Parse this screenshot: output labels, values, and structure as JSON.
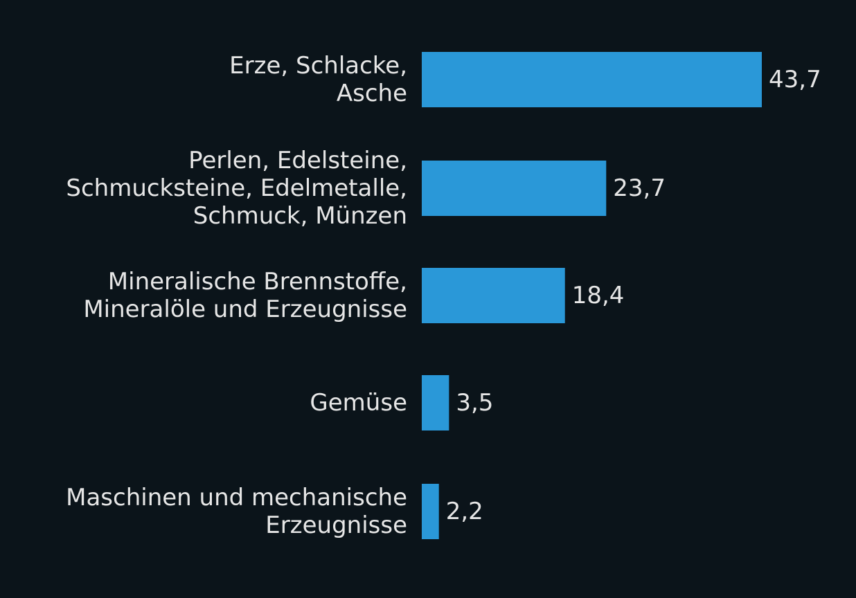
{
  "chart_data": {
    "type": "bar",
    "orientation": "horizontal",
    "title": "",
    "xlabel": "",
    "ylabel": "",
    "grid": false,
    "legend": "none",
    "xlim": [
      0,
      43.7
    ],
    "categories": [
      [
        "Erze, Schlacke,",
        "Asche"
      ],
      [
        "Perlen, Edelsteine,",
        "Schmucksteine, Edelmetalle,",
        "Schmuck, Münzen"
      ],
      [
        "Mineralische Brennstoffe,",
        "Mineralöle und Erzeugnisse"
      ],
      [
        "Gemüse"
      ],
      [
        "Maschinen und mechanische",
        "Erzeugnisse"
      ]
    ],
    "values": [
      43.7,
      23.7,
      18.4,
      3.5,
      2.2
    ],
    "value_labels": [
      "43,7",
      "23,7",
      "18,4",
      "3,5",
      "2,2"
    ],
    "colors": {
      "background": "#0b141a",
      "bar": "#2a98d8",
      "text": "#e6e6e6"
    }
  }
}
